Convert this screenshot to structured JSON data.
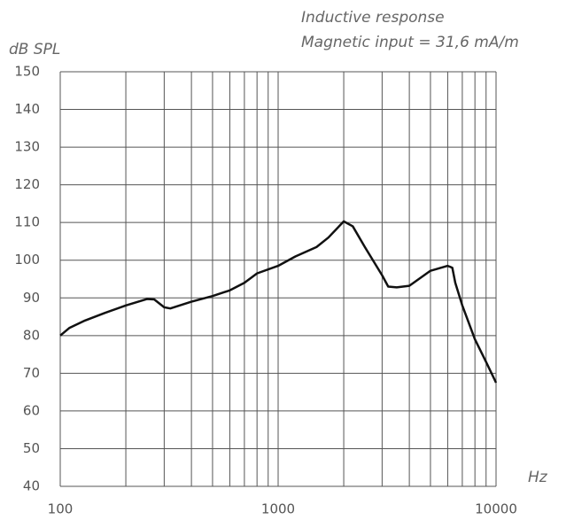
{
  "chart_data": {
    "type": "line",
    "title": "Inductive response",
    "subtitle": "Magnetic input =  31,6 mA/m",
    "y_label": "dB SPL",
    "x_label": "Hz",
    "xscale": "log",
    "xlim": [
      100,
      10000
    ],
    "xticks": [
      100,
      1000,
      10000
    ],
    "xgrid": [
      200,
      300,
      400,
      500,
      600,
      700,
      800,
      900,
      2000,
      3000,
      4000,
      5000,
      6000,
      7000,
      8000,
      9000
    ],
    "ylim": [
      40,
      150
    ],
    "yticks": [
      40,
      50,
      60,
      70,
      80,
      90,
      100,
      110,
      120,
      130,
      140,
      150
    ],
    "grid": true,
    "x": [
      100,
      110,
      130,
      160,
      200,
      250,
      270,
      300,
      320,
      400,
      500,
      600,
      700,
      800,
      1000,
      1200,
      1500,
      1700,
      2000,
      2200,
      2500,
      3000,
      3200,
      3500,
      4000,
      5000,
      6000,
      6300,
      6500,
      7000,
      8000,
      9000,
      10000
    ],
    "series": [
      {
        "color": "#111111",
        "values": [
          80,
          82,
          84,
          86,
          88,
          89.7,
          89.6,
          87.5,
          87.2,
          89,
          90.5,
          92,
          94,
          96.5,
          98.5,
          101,
          103.5,
          106,
          110.3,
          109,
          103.5,
          96,
          93,
          92.8,
          93.2,
          97.2,
          98.5,
          98,
          94,
          88,
          79,
          73,
          67.5
        ]
      }
    ]
  }
}
